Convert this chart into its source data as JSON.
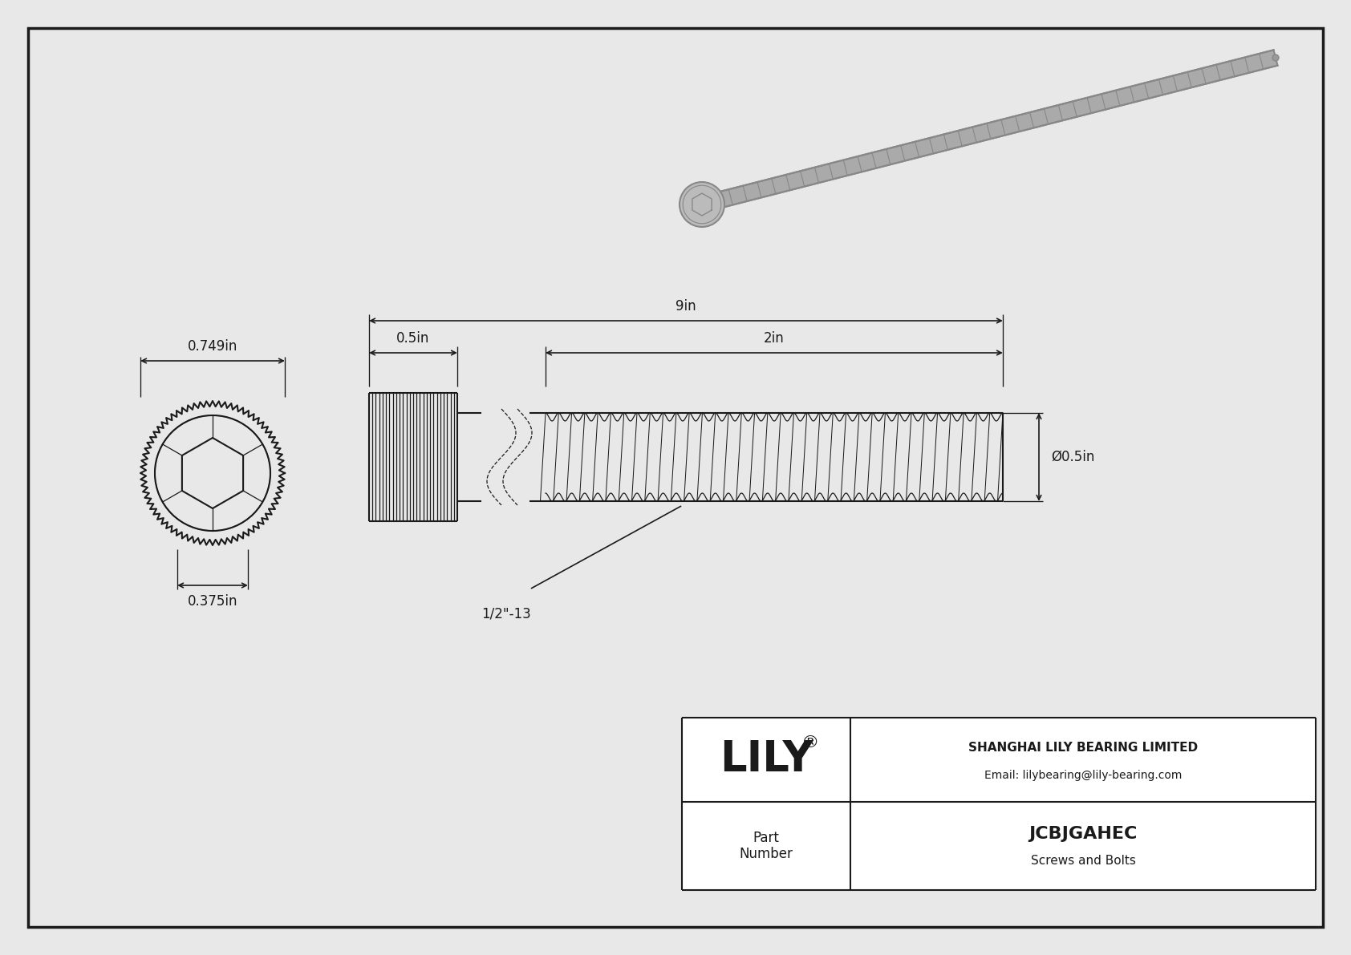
{
  "bg_color": "#e8e8e8",
  "line_color": "#1a1a1a",
  "title": "JCBJGAHEC",
  "subtitle": "Screws and Bolts",
  "company": "SHANGHAI LILY BEARING LIMITED",
  "email": "Email: lilybearing@lily-bearing.com",
  "part_label": "Part\nNumber",
  "dim_head_diameter": "0.749in",
  "dim_socket_width": "0.375in",
  "dim_total_length": "9in",
  "dim_head_length": "0.5in",
  "dim_thread_length": "2in",
  "dim_shank_diameter": "Ø0.5in",
  "dim_thread_spec": "1/2\"-13",
  "photo_screw_color": "#aaaaaa",
  "photo_screw_dark": "#888888"
}
